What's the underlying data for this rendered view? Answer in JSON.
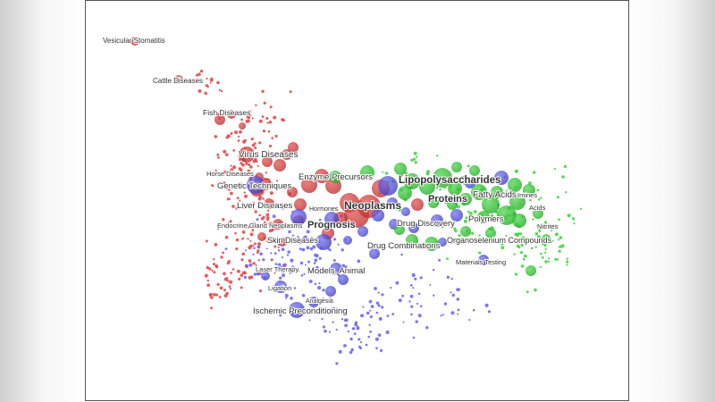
{
  "colors": {
    "cluster_red": "#e64b4b",
    "cluster_blue": "#6b6bef",
    "cluster_green": "#44d644",
    "label": "#333333",
    "frame_border": "#555555"
  },
  "labels": [
    {
      "text": "Vesicular Stomatitis",
      "cluster": "red",
      "emphasis": "normal"
    },
    {
      "text": "Cattle Diseases",
      "cluster": "red",
      "emphasis": "normal"
    },
    {
      "text": "Fish Diseases",
      "cluster": "red",
      "emphasis": "normal"
    },
    {
      "text": "Virus Diseases",
      "cluster": "red",
      "emphasis": "normal"
    },
    {
      "text": "Horse Diseases",
      "cluster": "red",
      "emphasis": "small"
    },
    {
      "text": "Genetic Techniques",
      "cluster": "red",
      "emphasis": "normal"
    },
    {
      "text": "Enzyme Precursors",
      "cluster": "red",
      "emphasis": "normal"
    },
    {
      "text": "Lipopolysaccharides",
      "cluster": "green",
      "emphasis": "bold"
    },
    {
      "text": "Proteins",
      "cluster": "green",
      "emphasis": "bold"
    },
    {
      "text": "Fatty Acids",
      "cluster": "green",
      "emphasis": "normal"
    },
    {
      "text": "Imines",
      "cluster": "green",
      "emphasis": "small"
    },
    {
      "text": "Acids",
      "cluster": "green",
      "emphasis": "small"
    },
    {
      "text": "Polymers",
      "cluster": "green",
      "emphasis": "normal"
    },
    {
      "text": "Nitrites",
      "cluster": "green",
      "emphasis": "small"
    },
    {
      "text": "Liver Diseases",
      "cluster": "red",
      "emphasis": "normal"
    },
    {
      "text": "Hormones",
      "cluster": "red",
      "emphasis": "small"
    },
    {
      "text": "Neoplasms",
      "cluster": "red",
      "emphasis": "bold"
    },
    {
      "text": "Endocrine Gland Neoplasms",
      "cluster": "red",
      "emphasis": "small"
    },
    {
      "text": "Prognosis",
      "cluster": "red",
      "emphasis": "bold"
    },
    {
      "text": "Drug Discovery",
      "cluster": "blue",
      "emphasis": "normal"
    },
    {
      "text": "Skin Diseases",
      "cluster": "red",
      "emphasis": "normal"
    },
    {
      "text": "Drug Combinations",
      "cluster": "blue",
      "emphasis": "normal"
    },
    {
      "text": "Organoselenium Compounds",
      "cluster": "green",
      "emphasis": "normal"
    },
    {
      "text": "Materials Testing",
      "cluster": "green",
      "emphasis": "small"
    },
    {
      "text": "Laser Therapy",
      "cluster": "blue",
      "emphasis": "small"
    },
    {
      "text": "Models, Animal",
      "cluster": "blue",
      "emphasis": "normal"
    },
    {
      "text": "Ligation",
      "cluster": "blue",
      "emphasis": "small"
    },
    {
      "text": "Analgesia",
      "cluster": "blue",
      "emphasis": "small"
    },
    {
      "text": "Ischemic Preconditioning",
      "cluster": "blue",
      "emphasis": "normal"
    }
  ]
}
